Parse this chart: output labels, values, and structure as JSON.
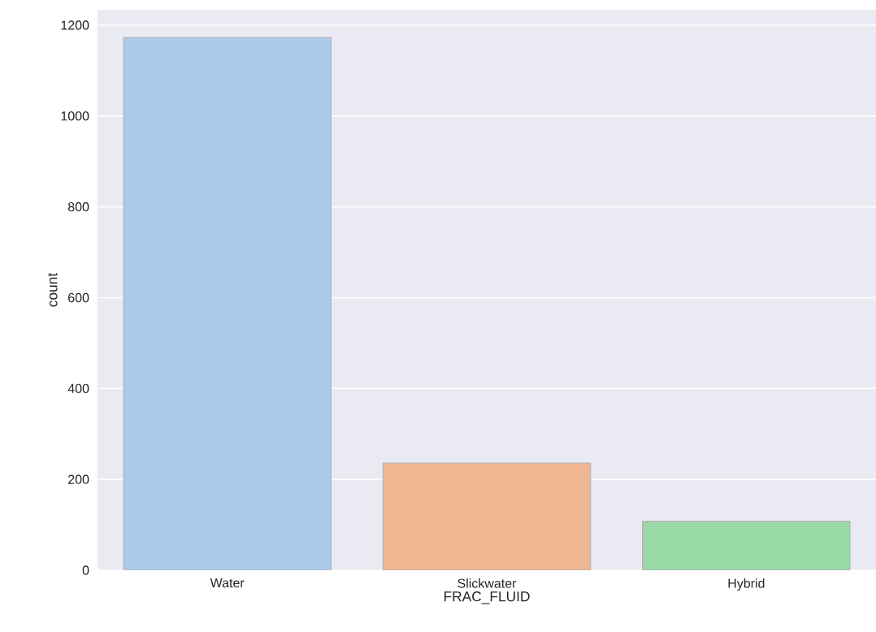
{
  "chart_data": {
    "type": "bar",
    "xlabel": "FRAC_FLUID",
    "ylabel": "count",
    "categories": [
      "Water",
      "Slickwater",
      "Hybrid"
    ],
    "values": [
      1173,
      236,
      108
    ],
    "colors": [
      "#abc9ea",
      "#efb792",
      "#98d9a6"
    ],
    "ylim": [
      0,
      1234
    ],
    "yticks": [
      0,
      200,
      400,
      600,
      800,
      1000,
      1200
    ],
    "grid": "y"
  }
}
